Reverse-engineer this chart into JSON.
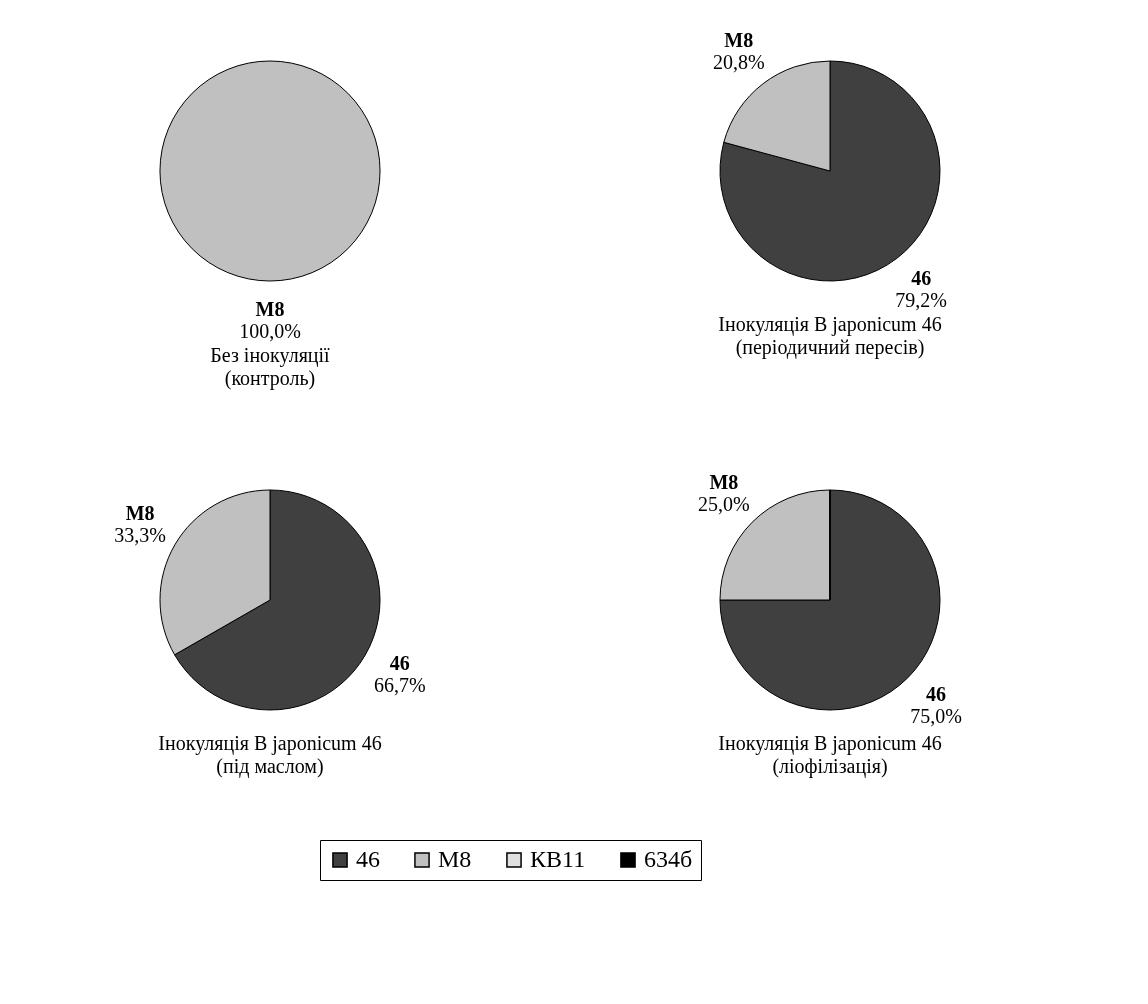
{
  "chart_data": [
    {
      "type": "pie",
      "title": "Без інокуляції",
      "subtitle": "(контроль)",
      "categories": [
        "M8"
      ],
      "values": [
        100
      ],
      "colors": [
        "#c0c0c0"
      ],
      "value_labels": [
        "100,0%"
      ]
    },
    {
      "type": "pie",
      "title": "Інокуляція B japonicum 46",
      "subtitle": "(періодичний пересів)",
      "categories": [
        "46",
        "M8"
      ],
      "values": [
        79.2,
        20.8
      ],
      "colors": [
        "#404040",
        "#c0c0c0"
      ],
      "value_labels": [
        "79,2%",
        "20,8%"
      ]
    },
    {
      "type": "pie",
      "title": "Інокуляція B japonicum 46",
      "subtitle": "(під маслом)",
      "categories": [
        "46",
        "M8"
      ],
      "values": [
        66.7,
        33.3
      ],
      "colors": [
        "#404040",
        "#c0c0c0"
      ],
      "value_labels": [
        "66,7%",
        "33,3%"
      ]
    },
    {
      "type": "pie",
      "title": "Інокуляція B japonicum 46",
      "subtitle": "(ліофілізація)",
      "categories": [
        "46",
        "M8",
        "КВ11",
        "634б"
      ],
      "values": [
        75.0,
        25.0,
        0,
        0
      ],
      "colors": [
        "#404040",
        "#c0c0c0",
        "#e0e0e0",
        "#000000"
      ],
      "value_labels": [
        "75,0%",
        "25,0%",
        null,
        null
      ],
      "legend": "bottom"
    }
  ]
}
